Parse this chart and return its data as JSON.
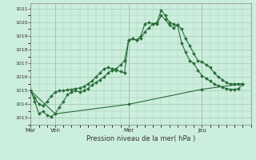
{
  "xlabel": "Pression niveau de la mer( hPa )",
  "bg_color": "#cceedd",
  "grid_color": "#aaccbb",
  "line_color": "#2a6e3a",
  "ylim": [
    1012.5,
    1021.4
  ],
  "yticks": [
    1013,
    1014,
    1015,
    1016,
    1017,
    1018,
    1019,
    1020,
    1021
  ],
  "day_labels": [
    "Mar",
    "Ven",
    "Mer",
    "Jeu"
  ],
  "day_positions": [
    0,
    3,
    12,
    21
  ],
  "xlim": [
    0,
    27
  ],
  "series1_x": [
    0,
    0.5,
    1,
    1.5,
    2,
    2.5,
    3,
    3.5,
    4,
    4.5,
    5,
    5.5,
    6,
    6.5,
    7,
    7.5,
    8,
    8.5,
    9,
    9.5,
    10,
    10.5,
    11,
    11.5,
    12,
    12.5,
    13,
    13.5,
    14,
    14.5,
    15,
    15.5,
    16,
    16.5,
    17,
    17.5,
    18,
    18.5,
    19,
    19.5,
    20,
    20.5,
    21,
    21.5,
    22,
    22.5,
    23,
    23.5,
    24,
    24.5,
    25,
    25.5,
    26
  ],
  "series1_y": [
    1015.0,
    1014.2,
    1013.3,
    1013.5,
    1013.2,
    1013.1,
    1013.3,
    1013.8,
    1014.2,
    1014.7,
    1014.9,
    1015.0,
    1014.9,
    1015.0,
    1015.15,
    1015.4,
    1015.6,
    1015.8,
    1016.0,
    1016.3,
    1016.5,
    1016.5,
    1016.4,
    1016.3,
    1018.7,
    1018.8,
    1018.7,
    1019.0,
    1019.9,
    1020.0,
    1019.9,
    1019.9,
    1020.5,
    1020.2,
    1019.8,
    1019.6,
    1019.8,
    1018.5,
    1017.8,
    1017.2,
    1017.0,
    1016.5,
    1016.1,
    1015.9,
    1015.7,
    1015.5,
    1015.35,
    1015.25,
    1015.15,
    1015.1,
    1015.1,
    1015.15,
    1015.5
  ],
  "series2_x": [
    0,
    0.5,
    1,
    1.5,
    2,
    2.5,
    3,
    3.5,
    4,
    4.5,
    5,
    5.5,
    6,
    6.5,
    7,
    7.5,
    8,
    8.5,
    9,
    9.5,
    10,
    10.5,
    11,
    11.5,
    12,
    12.5,
    13,
    13.5,
    14,
    14.5,
    15,
    15.5,
    16,
    16.5,
    17,
    17.5,
    18,
    18.5,
    19,
    19.5,
    20,
    20.5,
    21,
    21.5,
    22,
    22.5,
    23,
    23.5,
    24,
    24.5,
    25,
    25.5,
    26
  ],
  "series2_y": [
    1015.0,
    1014.5,
    1014.0,
    1013.9,
    1014.2,
    1014.6,
    1014.9,
    1015.0,
    1015.0,
    1015.05,
    1015.1,
    1015.15,
    1015.2,
    1015.3,
    1015.5,
    1015.7,
    1016.0,
    1016.3,
    1016.6,
    1016.7,
    1016.6,
    1016.6,
    1016.9,
    1017.2,
    1018.7,
    1018.8,
    1018.7,
    1018.85,
    1019.3,
    1019.6,
    1019.9,
    1020.0,
    1020.9,
    1020.5,
    1020.0,
    1019.85,
    1019.8,
    1019.5,
    1018.8,
    1018.3,
    1017.7,
    1017.2,
    1017.1,
    1016.9,
    1016.7,
    1016.3,
    1016.0,
    1015.8,
    1015.6,
    1015.5,
    1015.5,
    1015.5,
    1015.5
  ],
  "series3_x": [
    0,
    3,
    12,
    21,
    26
  ],
  "series3_y": [
    1015.0,
    1013.3,
    1014.0,
    1015.1,
    1015.5
  ]
}
